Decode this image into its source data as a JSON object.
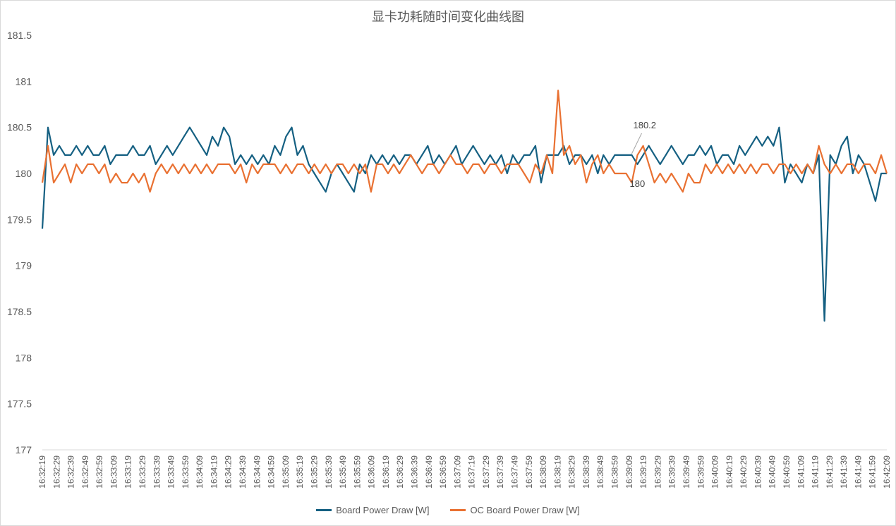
{
  "chart_data": {
    "type": "line",
    "title": "显卡功耗随时间变化曲线图",
    "xlabel": "",
    "ylabel": "",
    "ylim": [
      177,
      181.5
    ],
    "y_ticks": [
      "177",
      "177.5",
      "178",
      "178.5",
      "179",
      "179.5",
      "180",
      "180.5",
      "181",
      "181.5"
    ],
    "grid": false,
    "legend_position": "bottom",
    "x_tick_labels": [
      "16:32:19",
      "16:32:29",
      "16:32:39",
      "16:32:49",
      "16:32:59",
      "16:33:09",
      "16:33:19",
      "16:33:29",
      "16:33:39",
      "16:33:49",
      "16:33:59",
      "16:34:09",
      "16:34:19",
      "16:34:29",
      "16:34:39",
      "16:34:49",
      "16:34:59",
      "16:35:09",
      "16:35:19",
      "16:35:29",
      "16:35:39",
      "16:35:49",
      "16:35:59",
      "16:36:09",
      "16:36:19",
      "16:36:29",
      "16:36:39",
      "16:36:49",
      "16:36:59",
      "16:37:09",
      "16:37:19",
      "16:37:29",
      "16:37:39",
      "16:37:49",
      "16:37:59",
      "16:38:09",
      "16:38:19",
      "16:38:29",
      "16:38:39",
      "16:38:49",
      "16:38:59",
      "16:39:09",
      "16:39:19",
      "16:39:29",
      "16:39:39",
      "16:39:49",
      "16:39:59",
      "16:40:09",
      "16:40:19",
      "16:40:29",
      "16:40:39",
      "16:40:49",
      "16:40:59",
      "16:41:09",
      "16:41:19",
      "16:41:29",
      "16:41:39",
      "16:41:49",
      "16:41:59",
      "16:42:09"
    ],
    "series": [
      {
        "name": "Board Power Draw [W]",
        "color": "#156082",
        "data_label": {
          "index": 104,
          "text": "180.2"
        },
        "values": [
          179.4,
          180.5,
          180.2,
          180.3,
          180.2,
          180.2,
          180.3,
          180.2,
          180.3,
          180.2,
          180.2,
          180.3,
          180.1,
          180.2,
          180.2,
          180.2,
          180.3,
          180.2,
          180.2,
          180.3,
          180.1,
          180.2,
          180.3,
          180.2,
          180.3,
          180.4,
          180.5,
          180.4,
          180.3,
          180.2,
          180.4,
          180.3,
          180.5,
          180.4,
          180.1,
          180.2,
          180.1,
          180.2,
          180.1,
          180.2,
          180.1,
          180.3,
          180.2,
          180.4,
          180.5,
          180.2,
          180.3,
          180.1,
          180.0,
          179.9,
          179.8,
          180.0,
          180.1,
          180.0,
          179.9,
          179.8,
          180.1,
          180.0,
          180.2,
          180.1,
          180.2,
          180.1,
          180.2,
          180.1,
          180.2,
          180.2,
          180.1,
          180.2,
          180.3,
          180.1,
          180.2,
          180.1,
          180.2,
          180.3,
          180.1,
          180.2,
          180.3,
          180.2,
          180.1,
          180.2,
          180.1,
          180.2,
          180.0,
          180.2,
          180.1,
          180.2,
          180.2,
          180.3,
          179.9,
          180.2,
          180.2,
          180.2,
          180.3,
          180.1,
          180.2,
          180.2,
          180.1,
          180.2,
          180.0,
          180.2,
          180.1,
          180.2,
          180.2,
          180.2,
          180.2,
          180.1,
          180.2,
          180.3,
          180.2,
          180.1,
          180.2,
          180.3,
          180.2,
          180.1,
          180.2,
          180.2,
          180.3,
          180.2,
          180.3,
          180.1,
          180.2,
          180.2,
          180.1,
          180.3,
          180.2,
          180.3,
          180.4,
          180.3,
          180.4,
          180.3,
          180.5,
          179.9,
          180.1,
          180.0,
          179.9,
          180.1,
          180.0,
          180.2,
          178.4,
          180.2,
          180.1,
          180.3,
          180.4,
          180.0,
          180.2,
          180.1,
          179.9,
          179.7,
          180.0,
          180.0
        ]
      },
      {
        "name": "OC Board Power Draw [W]",
        "color": "#E97132",
        "data_label": {
          "index": 104,
          "text": "180"
        },
        "values": [
          179.9,
          180.3,
          179.9,
          180.0,
          180.1,
          179.9,
          180.1,
          180.0,
          180.1,
          180.1,
          180.0,
          180.1,
          179.9,
          180.0,
          179.9,
          179.9,
          180.0,
          179.9,
          180.0,
          179.8,
          180.0,
          180.1,
          180.0,
          180.1,
          180.0,
          180.1,
          180.0,
          180.1,
          180.0,
          180.1,
          180.0,
          180.1,
          180.1,
          180.1,
          180.0,
          180.1,
          179.9,
          180.1,
          180.0,
          180.1,
          180.1,
          180.1,
          180.0,
          180.1,
          180.0,
          180.1,
          180.1,
          180.0,
          180.1,
          180.0,
          180.1,
          180.0,
          180.1,
          180.1,
          180.0,
          180.1,
          180.0,
          180.1,
          179.8,
          180.1,
          180.1,
          180.0,
          180.1,
          180.0,
          180.1,
          180.2,
          180.1,
          180.0,
          180.1,
          180.1,
          180.0,
          180.1,
          180.2,
          180.1,
          180.1,
          180.0,
          180.1,
          180.1,
          180.0,
          180.1,
          180.1,
          180.0,
          180.1,
          180.1,
          180.1,
          180.0,
          179.9,
          180.1,
          180.0,
          180.2,
          180.0,
          180.9,
          180.2,
          180.3,
          180.1,
          180.2,
          179.9,
          180.1,
          180.2,
          180.0,
          180.1,
          180.0,
          180.0,
          180.0,
          179.9,
          180.2,
          180.3,
          180.1,
          179.9,
          180.0,
          179.9,
          180.0,
          179.9,
          179.8,
          180.0,
          179.9,
          179.9,
          180.1,
          180.0,
          180.1,
          180.0,
          180.1,
          180.0,
          180.1,
          180.0,
          180.1,
          180.0,
          180.1,
          180.1,
          180.0,
          180.1,
          180.1,
          180.0,
          180.1,
          180.0,
          180.1,
          180.0,
          180.3,
          180.1,
          180.0,
          180.1,
          180.0,
          180.1,
          180.1,
          180.0,
          180.1,
          180.1,
          180.0,
          180.2,
          180.0
        ]
      }
    ]
  }
}
